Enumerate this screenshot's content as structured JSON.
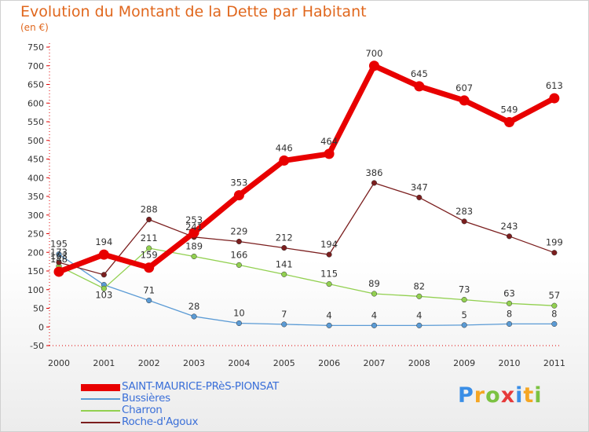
{
  "title": "Evolution du Montant de la Dette par Habitant",
  "subtitle": "(en €)",
  "logo": {
    "letters": [
      "P",
      "r",
      "o",
      "x",
      "i",
      "t",
      "i"
    ],
    "colors": [
      "#3a8ee6",
      "#f5a623",
      "#7cc242",
      "#e63a3a",
      "#3a8ee6",
      "#f5a623",
      "#7cc242"
    ]
  },
  "chart_data": {
    "type": "line",
    "x": [
      "2000",
      "2001",
      "2002",
      "2003",
      "2004",
      "2005",
      "2006",
      "2007",
      "2008",
      "2009",
      "2010",
      "2011"
    ],
    "yticks": [
      -50,
      0,
      50,
      100,
      150,
      200,
      250,
      300,
      350,
      400,
      450,
      500,
      550,
      600,
      650,
      700,
      750
    ],
    "ylim": [
      -50,
      750
    ],
    "grid": false,
    "legend_position": "bottom-left",
    "series": [
      {
        "name": "SAINT-MAURICE-PRèS-PIONSAT",
        "color": "#e80000",
        "values": [
          148,
          194,
          159,
          253,
          353,
          446,
          464,
          700,
          645,
          607,
          549,
          613
        ],
        "labels": [
          "148",
          "194",
          "159",
          "253",
          "353",
          "446",
          "464",
          "700",
          "645",
          "607",
          "549",
          "613"
        ]
      },
      {
        "name": "Bussières",
        "color": "#5b9bd5",
        "values": [
          195,
          113,
          71,
          28,
          10,
          7,
          4,
          4,
          4,
          5,
          8,
          8
        ],
        "labels": [
          "195",
          "",
          "71",
          "28",
          "10",
          "7",
          "4",
          "4",
          "4",
          "5",
          "8",
          "8"
        ]
      },
      {
        "name": "Charron",
        "color": "#92d050",
        "values": [
          163,
          103,
          211,
          189,
          166,
          141,
          115,
          89,
          82,
          73,
          63,
          57
        ],
        "labels": [
          "163",
          "103",
          "211",
          "189",
          "166",
          "141",
          "115",
          "89",
          "82",
          "73",
          "63",
          "57"
        ]
      },
      {
        "name": "Roche-d'Agoux",
        "color": "#7b1e1e",
        "values": [
          173,
          140,
          288,
          241,
          229,
          212,
          194,
          386,
          347,
          283,
          243,
          199
        ],
        "labels": [
          "173",
          "",
          "288",
          "241",
          "229",
          "212",
          "194",
          "386",
          "347",
          "283",
          "243",
          "199"
        ]
      }
    ]
  }
}
